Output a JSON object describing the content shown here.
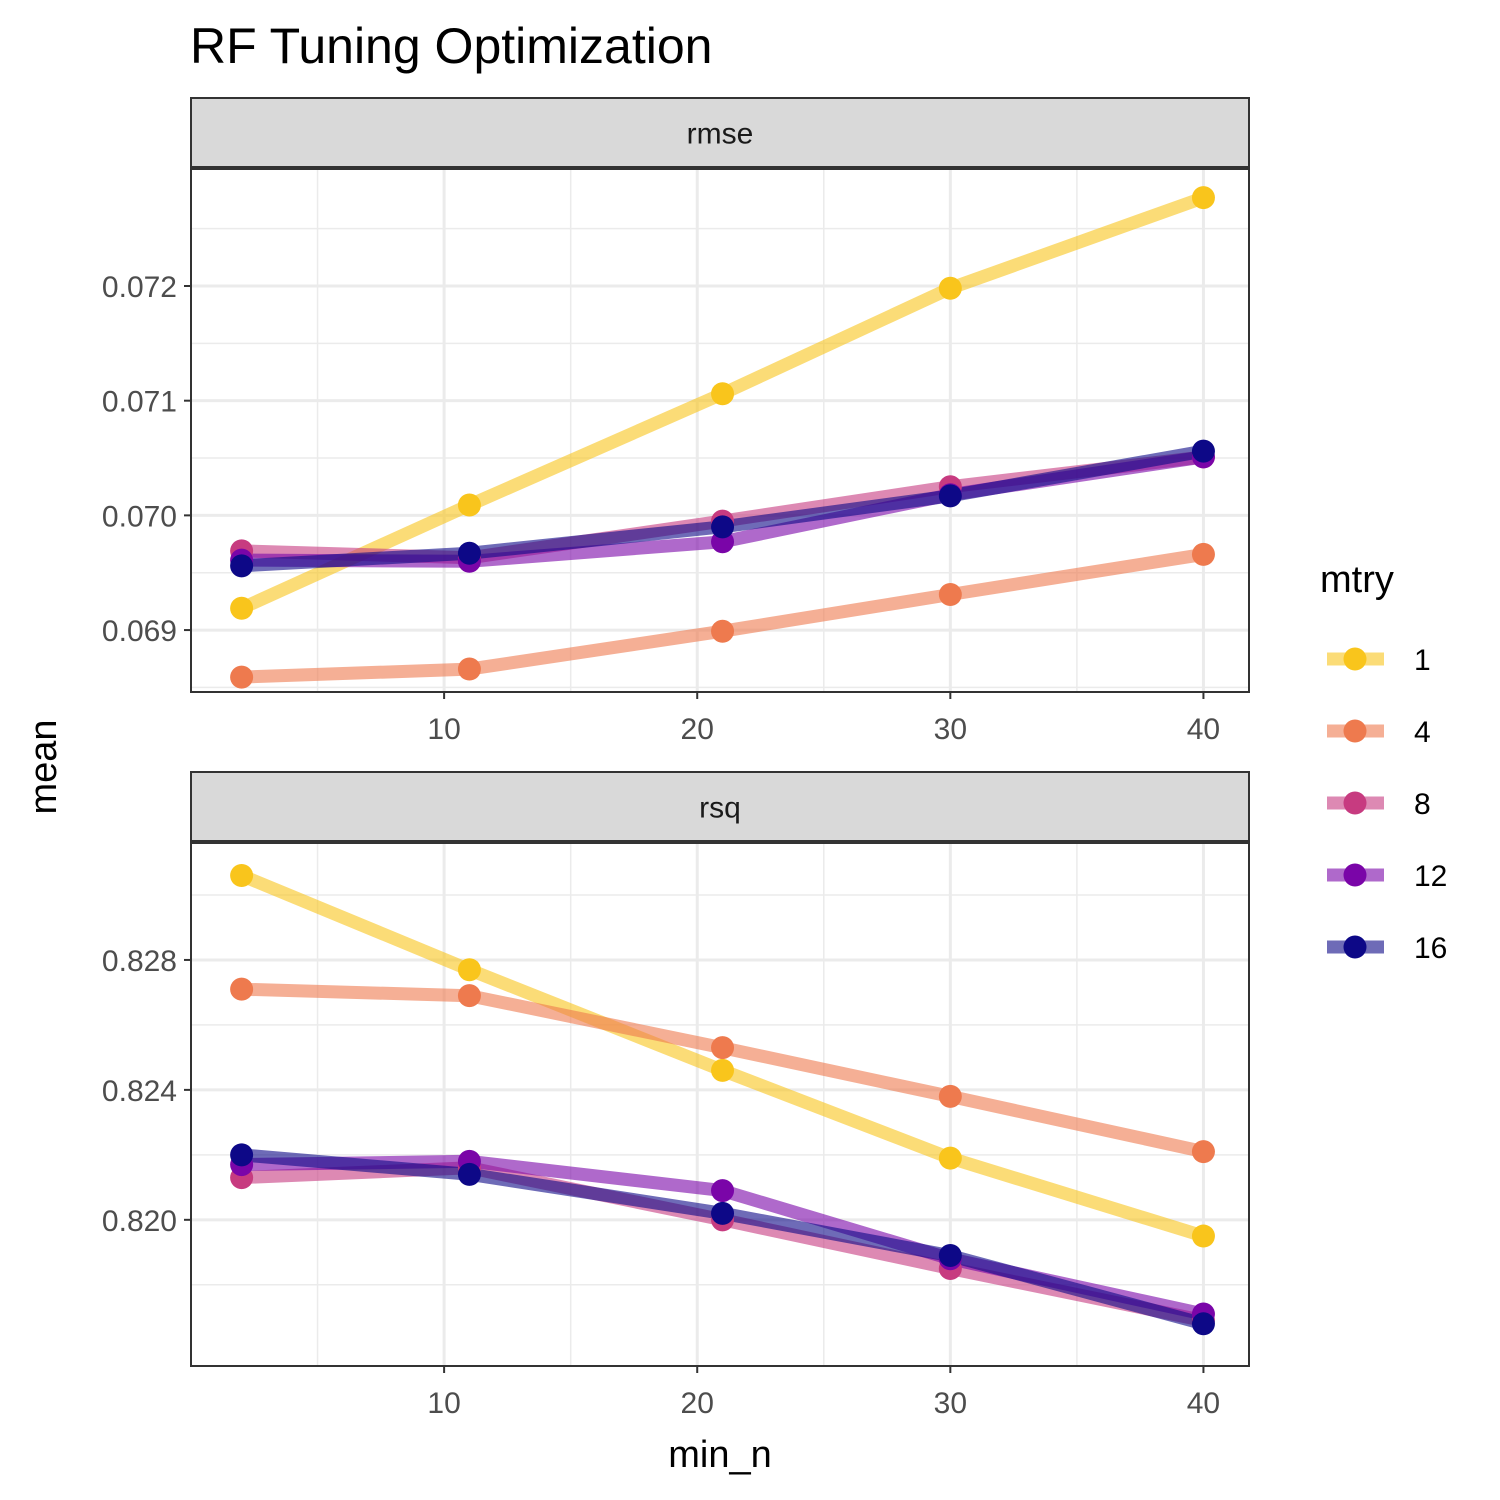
{
  "chart_data": {
    "type": "line",
    "title": "RF Tuning Optimization",
    "xlabel": "min_n",
    "ylabel": "mean",
    "x": [
      2,
      11,
      21,
      30,
      40
    ],
    "xlim": [
      0,
      41.8
    ],
    "xticks": [
      10,
      20,
      30,
      40
    ],
    "legend": {
      "title": "mtry",
      "position": "right"
    },
    "grid": true,
    "facets": [
      {
        "name": "rmse",
        "ylim": [
          0.06846,
          0.07302
        ],
        "yticks": [
          0.069,
          0.07,
          0.071,
          0.072
        ],
        "ytick_labels": [
          "0.069",
          "0.070",
          "0.071",
          "0.072"
        ],
        "series": [
          {
            "name": "1",
            "color": "#f9c51c",
            "values": [
              0.06919,
              0.07009,
              0.07106,
              0.07198,
              0.07277
            ]
          },
          {
            "name": "4",
            "color": "#ee7a4e",
            "values": [
              0.06859,
              0.06866,
              0.06899,
              0.06931,
              0.06966
            ]
          },
          {
            "name": "8",
            "color": "#c73b80",
            "values": [
              0.06969,
              0.06963,
              0.06995,
              0.07025,
              0.07051
            ]
          },
          {
            "name": "12",
            "color": "#7a05a8",
            "values": [
              0.06961,
              0.0696,
              0.06977,
              0.07018,
              0.07051
            ]
          },
          {
            "name": "16",
            "color": "#0d0887",
            "values": [
              0.06956,
              0.06967,
              0.0699,
              0.07017,
              0.07056
            ]
          }
        ]
      },
      {
        "name": "rsq",
        "ylim": [
          0.8155,
          0.8316
        ],
        "yticks": [
          0.82,
          0.824,
          0.828
        ],
        "ytick_labels": [
          "0.820",
          "0.824",
          "0.828"
        ],
        "series": [
          {
            "name": "1",
            "color": "#f9c51c",
            "values": [
              0.8306,
              0.8277,
              0.8246,
              0.8219,
              0.8195
            ]
          },
          {
            "name": "4",
            "color": "#ee7a4e",
            "values": [
              0.8271,
              0.8269,
              0.8253,
              0.8238,
              0.8221
            ]
          },
          {
            "name": "8",
            "color": "#c73b80",
            "values": [
              0.8213,
              0.8216,
              0.82,
              0.8185,
              0.8169
            ]
          },
          {
            "name": "12",
            "color": "#7a05a8",
            "values": [
              0.8217,
              0.8218,
              0.8209,
              0.8188,
              0.8171
            ]
          },
          {
            "name": "16",
            "color": "#0d0887",
            "values": [
              0.822,
              0.8214,
              0.8202,
              0.8189,
              0.8168
            ]
          }
        ]
      }
    ]
  }
}
